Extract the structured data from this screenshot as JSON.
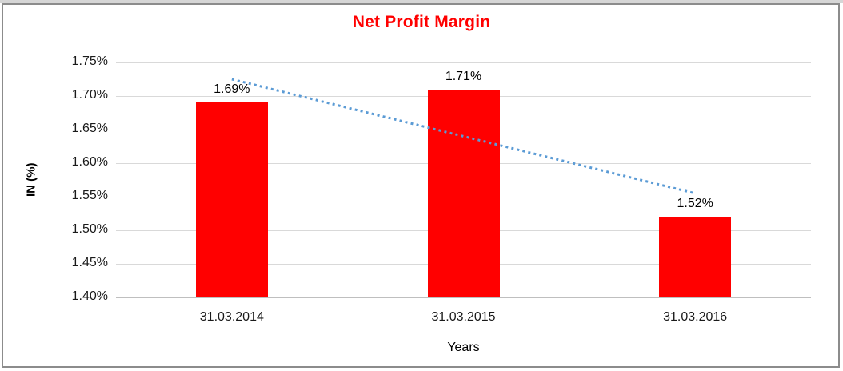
{
  "frame": {
    "top_strip_color": "#d6d6d6",
    "border_color": "#8c8c8c",
    "background": "#ffffff"
  },
  "chart_data": {
    "type": "bar",
    "title": "Net Profit Margin",
    "title_color": "#ff0000",
    "xlabel": "Years",
    "ylabel": "IN (%)",
    "categories": [
      "31.03.2014",
      "31.03.2015",
      "31.03.2016"
    ],
    "values": [
      1.69,
      1.71,
      1.52
    ],
    "value_labels": [
      "1.69%",
      "1.71%",
      "1.52%"
    ],
    "ylim": [
      1.4,
      1.75
    ],
    "ytick_step": 0.05,
    "ytick_labels": [
      "1.75%",
      "1.70%",
      "1.65%",
      "1.60%",
      "1.55%",
      "1.50%",
      "1.45%",
      "1.40%"
    ],
    "bar_color": "#ff0000",
    "gridline_color": "#d9d9d9",
    "grid": true,
    "legend": "none",
    "trendline": {
      "type": "linear",
      "style": "dotted",
      "color": "#5b9bd5"
    }
  }
}
